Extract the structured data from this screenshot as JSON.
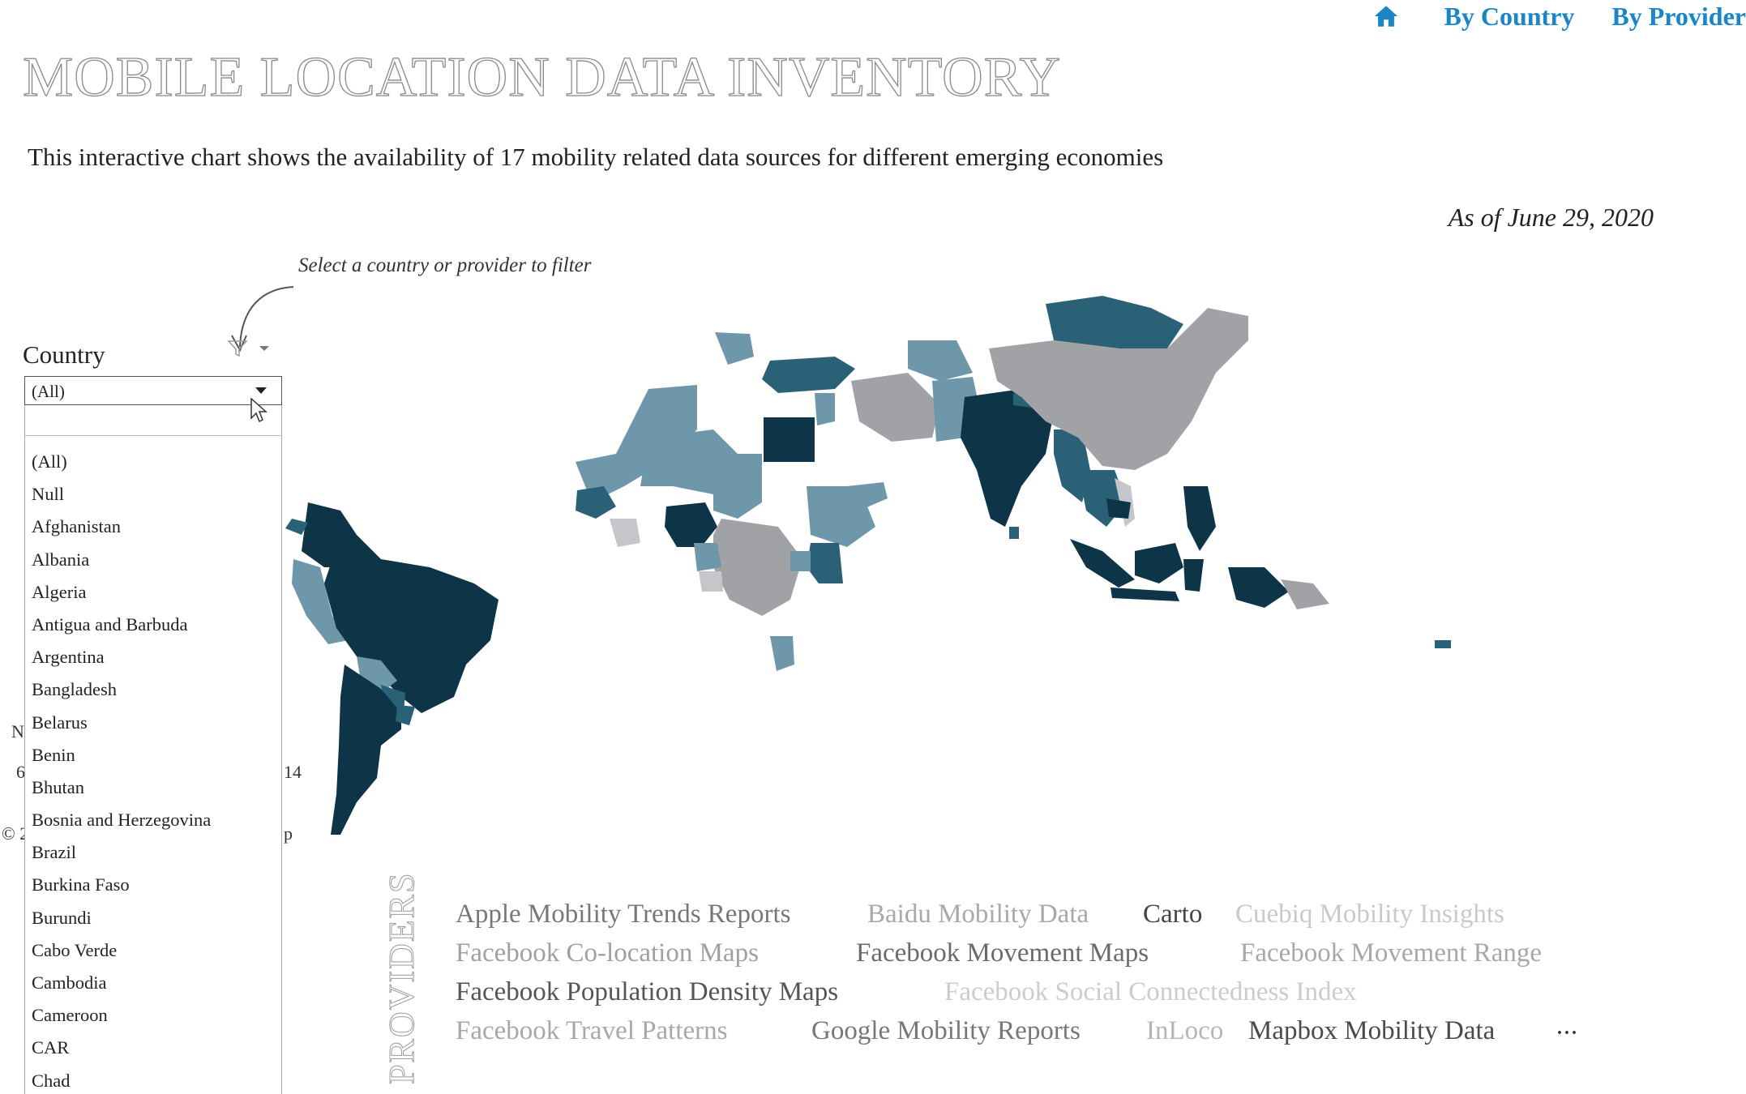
{
  "nav": {
    "home_icon": "home-icon",
    "by_country": "By Country",
    "by_provider": "By Provider",
    "accent": "#1a86c8"
  },
  "title": "MOBILE LOCATION DATA INVENTORY",
  "subtitle": "This interactive chart shows the availability of 17 mobility related data sources for different emerging economies",
  "as_of": "As of June 29, 2020",
  "hint": "Select a country or provider to filter",
  "filter": {
    "label": "Country",
    "selected": "(All)",
    "search_value": "",
    "options": [
      "(All)",
      "Null",
      "Afghanistan",
      "Albania",
      "Algeria",
      "Antigua and Barbuda",
      "Argentina",
      "Bangladesh",
      "Belarus",
      "Benin",
      "Bhutan",
      "Bosnia and Herzegovina",
      "Brazil",
      "Burkina Faso",
      "Burundi",
      "Cabo Verde",
      "Cambodia",
      "Cameroon",
      "CAR",
      "Chad"
    ]
  },
  "clipped_text": {
    "n": "N",
    "six": "6",
    "fourteen": "14",
    "copy": "© 2",
    "p": "p"
  },
  "map_colors": {
    "darkest": "#0d3447",
    "dark": "#2a6176",
    "medium": "#6f97aa",
    "gray": "#a0a2a6",
    "light": "#c4c6ca"
  },
  "providers": {
    "label": "PROVIDERS",
    "items": [
      {
        "name": "Apple Mobility Trends Reports",
        "color": "#777777"
      },
      {
        "name": "Baidu Mobility Data",
        "color": "#a8a8a8"
      },
      {
        "name": "Carto",
        "color": "#444444"
      },
      {
        "name": "Cuebiq Mobility Insights",
        "color": "#c9c9c9"
      },
      {
        "name": "Facebook Co-location Maps",
        "color": "#a0a0a0"
      },
      {
        "name": "Facebook Movement Maps",
        "color": "#6a6a6a"
      },
      {
        "name": "Facebook Movement Range",
        "color": "#a8a8a8"
      },
      {
        "name": "Facebook Population Density Maps",
        "color": "#555555"
      },
      {
        "name": "Facebook Social Connectedness Index",
        "color": "#cccccc"
      },
      {
        "name": "Facebook Travel Patterns",
        "color": "#a8a8a8"
      },
      {
        "name": "Google Mobility Reports",
        "color": "#777777"
      },
      {
        "name": "InLoco",
        "color": "#b5b5b5"
      },
      {
        "name": "Mapbox Mobility Data",
        "color": "#4a4a4a"
      }
    ],
    "more": "···"
  }
}
